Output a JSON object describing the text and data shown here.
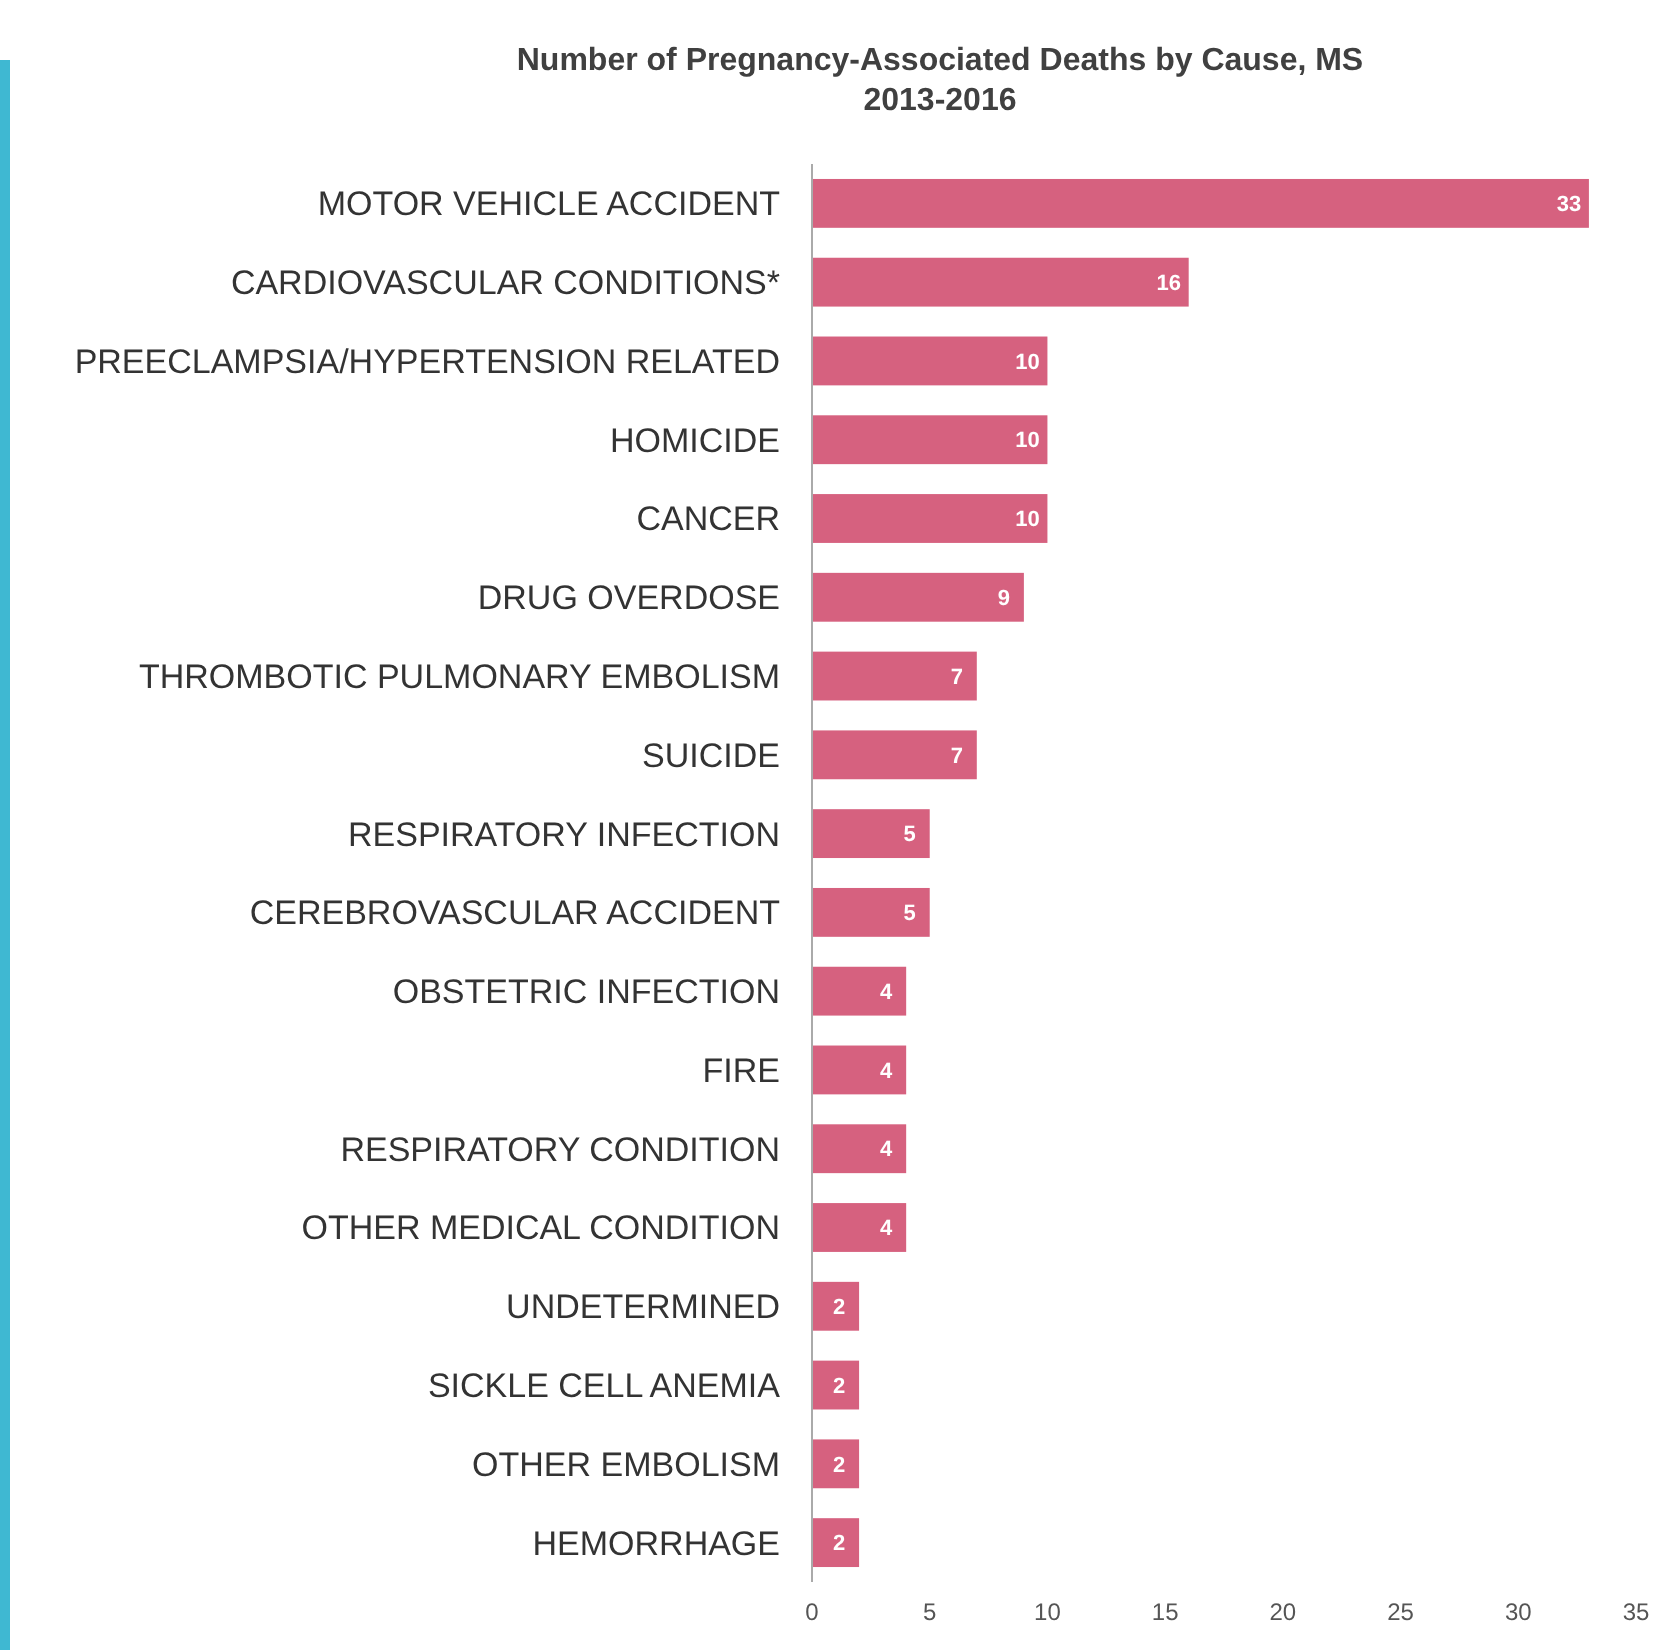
{
  "chart_data": {
    "type": "bar",
    "orientation": "horizontal",
    "title": "Number of Pregnancy-Associated Deaths by Cause, MS\n2013-2016",
    "categories": [
      "MOTOR VEHICLE ACCIDENT",
      "CARDIOVASCULAR CONDITIONS*",
      "PREECLAMPSIA/HYPERTENSION RELATED",
      "HOMICIDE",
      "CANCER",
      "DRUG OVERDOSE",
      "THROMBOTIC PULMONARY EMBOLISM",
      "SUICIDE",
      "RESPIRATORY INFECTION",
      "CEREBROVASCULAR ACCIDENT",
      "OBSTETRIC INFECTION",
      "FIRE",
      "RESPIRATORY CONDITION",
      "OTHER MEDICAL CONDITION",
      "UNDETERMINED",
      "SICKLE CELL ANEMIA",
      "OTHER EMBOLISM",
      "HEMORRHAGE"
    ],
    "values": [
      33,
      16,
      10,
      10,
      10,
      9,
      7,
      7,
      5,
      5,
      4,
      4,
      4,
      4,
      2,
      2,
      2,
      2
    ],
    "color": "#d6617f",
    "xlim": [
      0,
      35
    ],
    "xticks": [
      0,
      5,
      10,
      15,
      20,
      25,
      30,
      35
    ],
    "data_labels": true,
    "grid": false
  }
}
